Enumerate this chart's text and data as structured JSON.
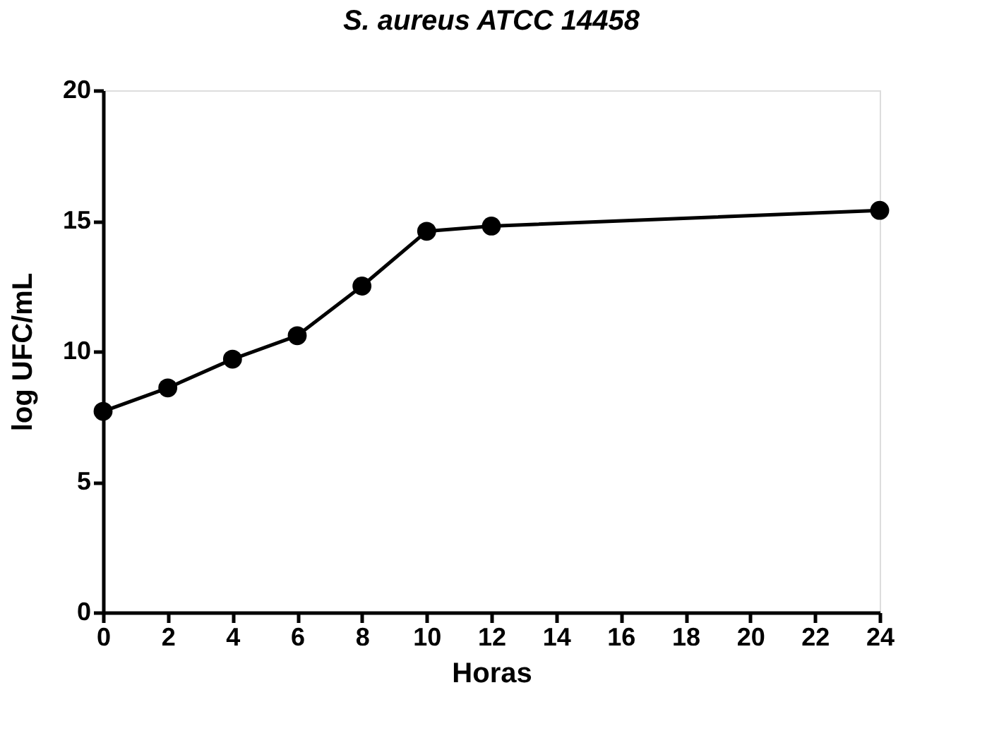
{
  "chart_data": {
    "type": "line",
    "title": "S. aureus ATCC 14458",
    "xlabel": "Horas",
    "ylabel": "log UFC/mL",
    "x": [
      0,
      2,
      4,
      6,
      8,
      10,
      12,
      24
    ],
    "series": [
      {
        "color": "#000000",
        "values": [
          7.7,
          8.6,
          9.7,
          10.6,
          12.5,
          14.6,
          14.8,
          15.4
        ]
      }
    ],
    "xlim": [
      0,
      24
    ],
    "xticks": [
      0,
      2,
      4,
      6,
      8,
      10,
      12,
      14,
      16,
      18,
      20,
      22,
      24
    ],
    "ylim": [
      0,
      20
    ],
    "yticks": [
      0,
      5,
      10,
      15,
      20
    ],
    "grid": false,
    "legend": false,
    "marker": "circle",
    "line_style": "solid"
  }
}
